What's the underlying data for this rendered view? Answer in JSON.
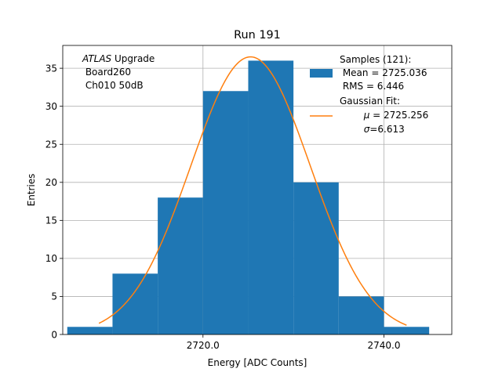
{
  "chart_data": {
    "type": "bar",
    "title": "Run 191",
    "xlabel": "Energy [ADC Counts]",
    "ylabel": "Entries",
    "xlim": [
      2704.5,
      2747.5
    ],
    "ylim": [
      0,
      38
    ],
    "grid": true,
    "x_ticks": [
      2720,
      2740
    ],
    "x_tick_labels": [
      "2720.0",
      "2740.0"
    ],
    "y_ticks": [
      0,
      5,
      10,
      15,
      20,
      25,
      30,
      35
    ],
    "y_tick_labels": [
      "0",
      "5",
      "10",
      "15",
      "20",
      "25",
      "30",
      "35"
    ],
    "bin_edges": [
      2705,
      2710,
      2715,
      2720,
      2725,
      2730,
      2735,
      2740,
      2745
    ],
    "counts": [
      1,
      8,
      18,
      32,
      36,
      20,
      5,
      1
    ],
    "fit": {
      "type": "gaussian",
      "mu": 2725.256,
      "sigma": 6.613,
      "amplitude": 36.5,
      "x_range": [
        2708.5,
        2742.5
      ]
    },
    "colors": {
      "histogram": "#1f77b4",
      "fit": "#ff7f0e",
      "grid": "#b0b0b0"
    },
    "annotation": {
      "experiment": "ATLAS",
      "experiment_suffix": " Upgrade",
      "line2": " Board260",
      "line3": " Ch010 50dB"
    },
    "legend": {
      "position": "upper-right",
      "histogram_lines": [
        "Samples (121):",
        " Mean = 2725.036",
        " RMS = 6.446"
      ],
      "fit_line1": "Gaussian Fit:",
      "fit_mu_symbol": "μ",
      "fit_mu_value": " = 2725.256",
      "fit_sigma_symbol": "σ",
      "fit_sigma_value": "=6.613"
    }
  }
}
